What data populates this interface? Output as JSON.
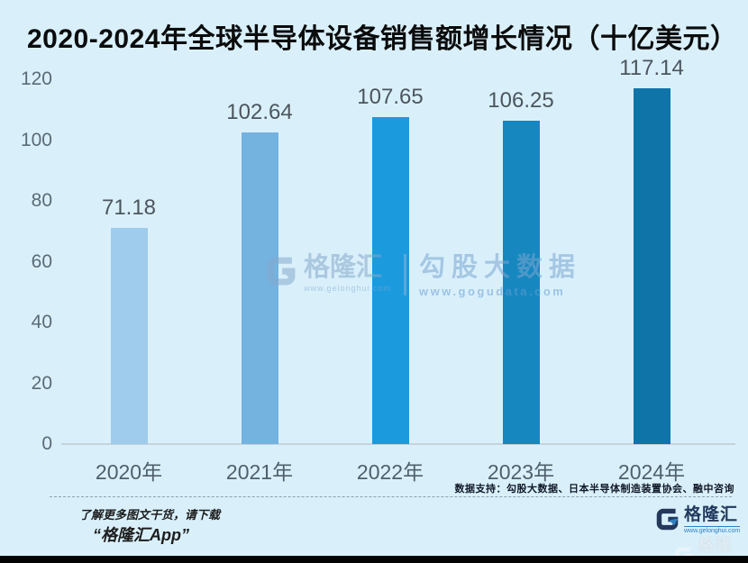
{
  "chart_data": {
    "type": "bar",
    "title": "2020-2024年全球半导体设备销售额增长情况（十亿美元）",
    "categories": [
      "2020年",
      "2021年",
      "2022年",
      "2023年",
      "2024年"
    ],
    "values": [
      71.18,
      102.64,
      107.65,
      106.25,
      117.14
    ],
    "unit": "十亿美元",
    "xlabel": "",
    "ylabel": "",
    "ylim": [
      0,
      120
    ],
    "y_ticks": [
      0,
      20,
      40,
      60,
      80,
      100,
      120
    ],
    "grid": false,
    "legend": "none",
    "bar_colors": [
      "#9fcbec",
      "#74b2e0",
      "#1b9ade",
      "#1787c0",
      "#0f74a8"
    ],
    "background": "#d9f0fb"
  },
  "watermark": {
    "brand": "格隆汇",
    "brand_url": "www.gelonghui.com",
    "partner": "勾股大数据",
    "partner_url": "www.gogudata.com"
  },
  "footer": {
    "source": "数据支持：勾股大数据、日本半导体制造装置协会、融中咨询",
    "promo_line1": "了解更多图文干货，请下载",
    "promo_line2": "“格隆汇App”",
    "logo_text": "格隆汇",
    "logo_url": "www.gelonghui.com"
  },
  "colors": {
    "logo_navy": "#24385c",
    "logo_blue": "#2f7fc1",
    "bottom_bar": "#030303"
  }
}
